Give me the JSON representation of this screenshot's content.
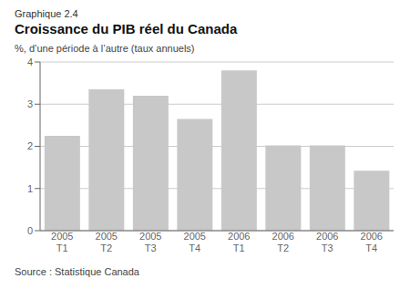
{
  "chart_data": {
    "type": "bar",
    "suptitle": "Graphique 2.4",
    "title": "Croissance du PIB réel du Canada",
    "subtitle": "%, d’une période à l’autre (taux annuels)",
    "source": "Source : Statistique Canada",
    "categories": [
      "2005\nT1",
      "2005\nT2",
      "2005\nT3",
      "2005\nT4",
      "2006\nT1",
      "2006\nT2",
      "2006\nT3",
      "2006\nT4"
    ],
    "values": [
      2.25,
      3.35,
      3.2,
      2.65,
      3.8,
      2.02,
      2.02,
      1.42
    ],
    "color": "#c8c8c8",
    "ylim": [
      0,
      4
    ],
    "yticks": [
      0,
      1,
      2,
      3,
      4
    ],
    "grid": true
  }
}
